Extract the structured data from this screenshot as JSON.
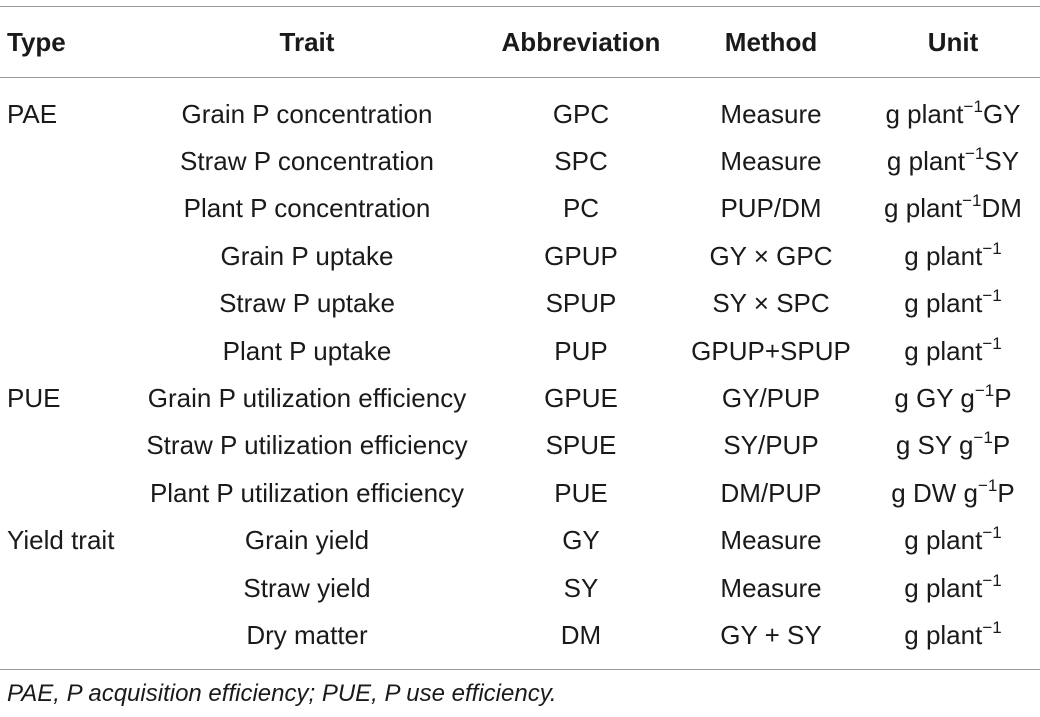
{
  "table": {
    "headers": [
      "Type",
      "Trait",
      "Abbreviation",
      "Method",
      "Unit"
    ],
    "rows": [
      {
        "type": "PAE",
        "trait": "Grain P concentration",
        "abbreviation": "GPC",
        "method": "Measure",
        "unit_pre": "g plant",
        "unit_sup": "−1",
        "unit_post": "GY"
      },
      {
        "type": "",
        "trait": "Straw P concentration",
        "abbreviation": "SPC",
        "method": "Measure",
        "unit_pre": "g plant",
        "unit_sup": "−1",
        "unit_post": "SY"
      },
      {
        "type": "",
        "trait": "Plant P concentration",
        "abbreviation": "PC",
        "method": "PUP/DM",
        "unit_pre": "g plant",
        "unit_sup": "−1",
        "unit_post": "DM"
      },
      {
        "type": "",
        "trait": "Grain P uptake",
        "abbreviation": "GPUP",
        "method": "GY × GPC",
        "unit_pre": "g plant",
        "unit_sup": "−1",
        "unit_post": ""
      },
      {
        "type": "",
        "trait": "Straw P uptake",
        "abbreviation": "SPUP",
        "method": "SY × SPC",
        "unit_pre": "g plant",
        "unit_sup": "−1",
        "unit_post": ""
      },
      {
        "type": "",
        "trait": "Plant P uptake",
        "abbreviation": "PUP",
        "method": "GPUP+SPUP",
        "unit_pre": "g plant",
        "unit_sup": "−1",
        "unit_post": ""
      },
      {
        "type": "PUE",
        "trait": "Grain P utilization efficiency",
        "abbreviation": "GPUE",
        "method": "GY/PUP",
        "unit_pre": "g GY g",
        "unit_sup": "−1",
        "unit_post": "P"
      },
      {
        "type": "",
        "trait": "Straw P utilization efficiency",
        "abbreviation": "SPUE",
        "method": "SY/PUP",
        "unit_pre": "g SY g",
        "unit_sup": "−1",
        "unit_post": "P"
      },
      {
        "type": "",
        "trait": "Plant P utilization efficiency",
        "abbreviation": "PUE",
        "method": "DM/PUP",
        "unit_pre": "g DW g",
        "unit_sup": "−1",
        "unit_post": "P"
      },
      {
        "type": "Yield trait",
        "trait": "Grain yield",
        "abbreviation": "GY",
        "method": "Measure",
        "unit_pre": "g plant",
        "unit_sup": "−1",
        "unit_post": ""
      },
      {
        "type": "",
        "trait": "Straw yield",
        "abbreviation": "SY",
        "method": "Measure",
        "unit_pre": "g plant",
        "unit_sup": "−1",
        "unit_post": ""
      },
      {
        "type": "",
        "trait": "Dry matter",
        "abbreviation": "DM",
        "method": "GY + SY",
        "unit_pre": "g plant",
        "unit_sup": "−1",
        "unit_post": ""
      }
    ]
  },
  "footnote": "PAE, P acquisition efficiency; PUE, P use efficiency."
}
